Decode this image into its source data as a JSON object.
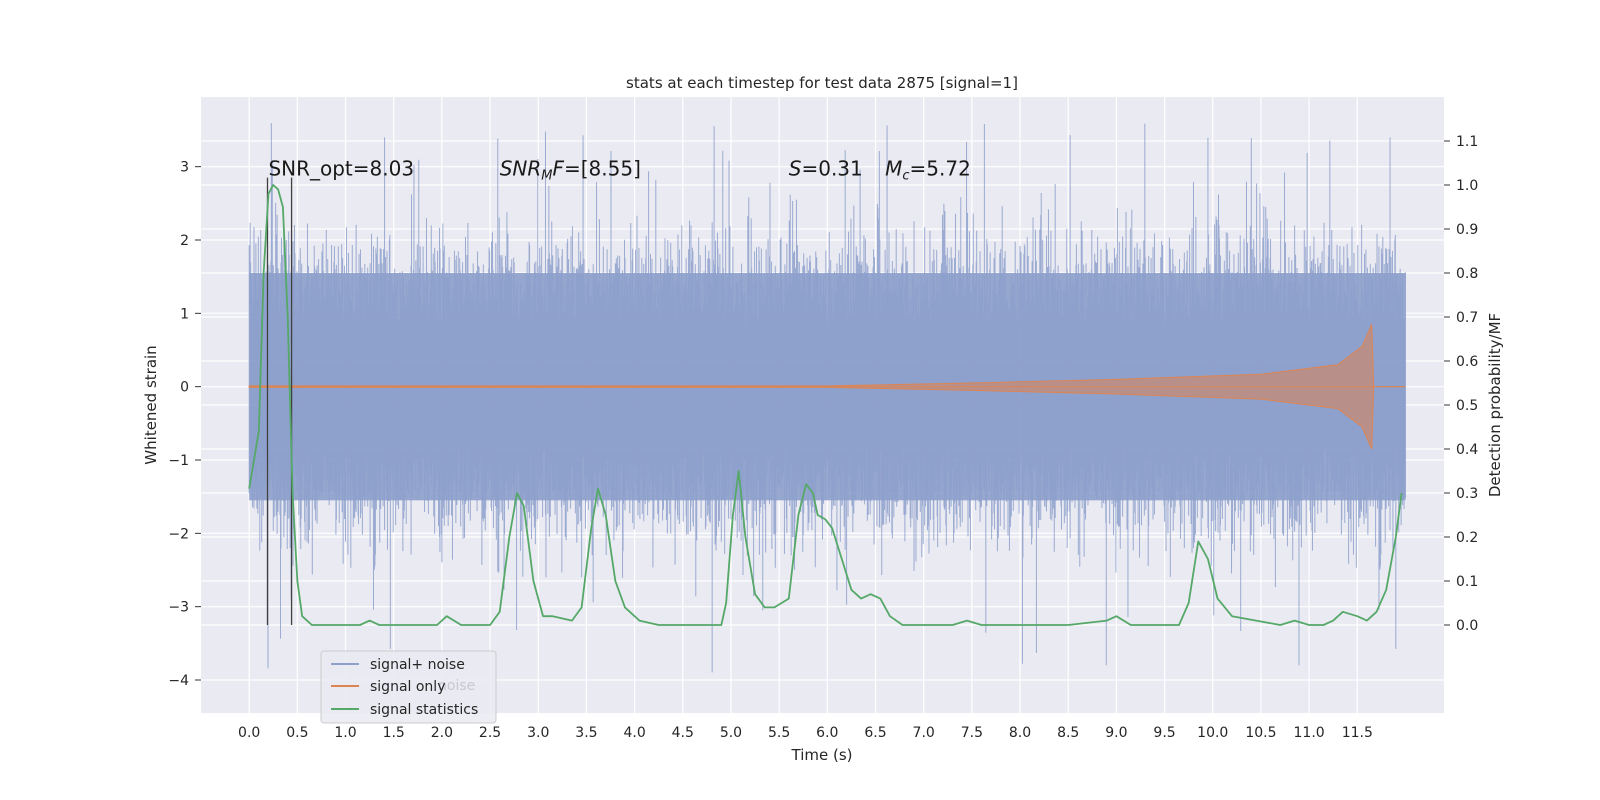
{
  "chart_data": {
    "type": "line",
    "title": "stats at each timestep for test data 2875 [signal=1]",
    "xlabel": "Time (s)",
    "ylabel": "Whitened strain",
    "ylabel_right": "Detection probability/MF",
    "xlim": [
      -0.5,
      12.4
    ],
    "ylim": [
      -4.45,
      3.95
    ],
    "ylim_right": [
      -0.2,
      1.2
    ],
    "x_ticks": [
      0.0,
      0.5,
      1.0,
      1.5,
      2.0,
      2.5,
      3.0,
      3.5,
      4.0,
      4.5,
      5.0,
      5.5,
      6.0,
      6.5,
      7.0,
      7.5,
      8.0,
      8.5,
      9.0,
      9.5,
      10.0,
      10.5,
      11.0,
      11.5
    ],
    "x_tick_labels": [
      "0.0",
      "0.5",
      "1.0",
      "1.5",
      "2.0",
      "2.5",
      "3.0",
      "3.5",
      "4.0",
      "4.5",
      "5.0",
      "5.5",
      "6.0",
      "6.5",
      "7.0",
      "7.5",
      "8.0",
      "8.5",
      "9.0",
      "9.5",
      "10.0",
      "10.5",
      "11.0",
      "11.5"
    ],
    "y_ticks": [
      -4,
      -3,
      -2,
      -1,
      0,
      1,
      2,
      3
    ],
    "y_tick_labels": [
      "−4",
      "−3",
      "−2",
      "−1",
      "0",
      "1",
      "2",
      "3"
    ],
    "y_right_ticks": [
      0.0,
      0.1,
      0.2,
      0.3,
      0.4,
      0.5,
      0.6,
      0.7,
      0.8,
      0.9,
      1.0,
      1.1
    ],
    "y_right_tick_labels": [
      "0.0",
      "0.1",
      "0.2",
      "0.3",
      "0.4",
      "0.5",
      "0.6",
      "0.7",
      "0.8",
      "0.9",
      "1.0",
      "1.1"
    ],
    "grid": true,
    "legend_position": "lower-left",
    "colors": {
      "noise": "#8da0cb",
      "signal": "#dd8452",
      "stats": "#55a868",
      "markers": "#404040",
      "plot_bg": "#eaeaf2",
      "grid": "#ffffff"
    },
    "noise_envelope": {
      "name": "signal+ noise",
      "t_start": 0.0,
      "t_end": 12.0,
      "typical_band": [
        -1.55,
        1.55
      ],
      "peak_range": [
        -4.1,
        3.6
      ]
    },
    "signal_only": {
      "name": "signal only",
      "description_points": [
        {
          "t": 0.0,
          "amp": 0.01
        },
        {
          "t": 6.0,
          "amp": 0.01
        },
        {
          "t": 7.5,
          "amp": 0.05
        },
        {
          "t": 9.0,
          "amp": 0.1
        },
        {
          "t": 10.5,
          "amp": 0.17
        },
        {
          "t": 11.3,
          "amp": 0.3
        },
        {
          "t": 11.55,
          "amp": 0.55
        },
        {
          "t": 11.65,
          "amp": 0.85
        },
        {
          "t": 11.67,
          "amp": 0.0
        },
        {
          "t": 12.0,
          "amp": 0.0
        }
      ]
    },
    "signal_statistics": {
      "name": "signal statistics",
      "x": [
        0.0,
        0.1,
        0.15,
        0.2,
        0.25,
        0.3,
        0.35,
        0.4,
        0.45,
        0.5,
        0.55,
        0.6,
        0.65,
        0.8,
        1.0,
        1.15,
        1.25,
        1.35,
        1.6,
        1.8,
        1.95,
        2.05,
        2.2,
        2.4,
        2.5,
        2.6,
        2.7,
        2.78,
        2.85,
        2.95,
        3.05,
        3.15,
        3.35,
        3.45,
        3.55,
        3.62,
        3.7,
        3.8,
        3.9,
        4.05,
        4.25,
        4.5,
        4.75,
        4.9,
        4.95,
        5.02,
        5.08,
        5.15,
        5.25,
        5.35,
        5.45,
        5.6,
        5.7,
        5.78,
        5.85,
        5.9,
        5.98,
        6.05,
        6.15,
        6.25,
        6.35,
        6.45,
        6.55,
        6.65,
        6.78,
        7.0,
        7.3,
        7.45,
        7.6,
        8.0,
        8.5,
        8.9,
        9.0,
        9.15,
        9.4,
        9.65,
        9.75,
        9.85,
        9.95,
        10.05,
        10.2,
        10.45,
        10.7,
        10.85,
        11.0,
        11.15,
        11.25,
        11.35,
        11.5,
        11.6,
        11.7,
        11.8,
        11.9,
        11.96
      ],
      "values": [
        0.31,
        0.44,
        0.8,
        0.98,
        1.0,
        0.99,
        0.95,
        0.7,
        0.3,
        0.1,
        0.02,
        0.01,
        0.0,
        0.0,
        0.0,
        0.0,
        0.01,
        0.0,
        0.0,
        0.0,
        0.0,
        0.02,
        0.0,
        0.0,
        0.0,
        0.03,
        0.2,
        0.3,
        0.27,
        0.1,
        0.02,
        0.02,
        0.01,
        0.04,
        0.22,
        0.31,
        0.25,
        0.1,
        0.04,
        0.01,
        0.0,
        0.0,
        0.0,
        0.0,
        0.05,
        0.25,
        0.35,
        0.2,
        0.07,
        0.04,
        0.04,
        0.06,
        0.25,
        0.32,
        0.3,
        0.25,
        0.24,
        0.22,
        0.15,
        0.08,
        0.06,
        0.07,
        0.06,
        0.02,
        0.0,
        0.0,
        0.0,
        0.01,
        0.0,
        0.0,
        0.0,
        0.01,
        0.02,
        0.0,
        0.0,
        0.0,
        0.05,
        0.19,
        0.15,
        0.06,
        0.02,
        0.01,
        0.0,
        0.01,
        0.0,
        0.0,
        0.01,
        0.03,
        0.02,
        0.01,
        0.03,
        0.08,
        0.2,
        0.3
      ]
    },
    "marker_lines": [
      {
        "t": 0.19,
        "y_top": 2.85,
        "y_bottom": -3.25
      },
      {
        "t": 0.44,
        "y_top": 2.85,
        "y_bottom": -3.25
      }
    ],
    "annotations": [
      {
        "text": "SNR_opt=8.03",
        "x": 0.2,
        "y": 2.88
      },
      {
        "text": "SNRMF=[8.55]",
        "x": 2.6,
        "y": 2.88
      },
      {
        "text": "S=0.31",
        "x": 5.6,
        "y": 2.88
      },
      {
        "text": "Mc=5.72",
        "x": 6.6,
        "y": 2.88
      }
    ],
    "legend": [
      {
        "label": "signal+ noise",
        "series": "noise"
      },
      {
        "label": "signal only",
        "series": "signal"
      },
      {
        "label": "signal statistics",
        "series": "stats"
      }
    ],
    "legend_ghost_text": "noise"
  }
}
